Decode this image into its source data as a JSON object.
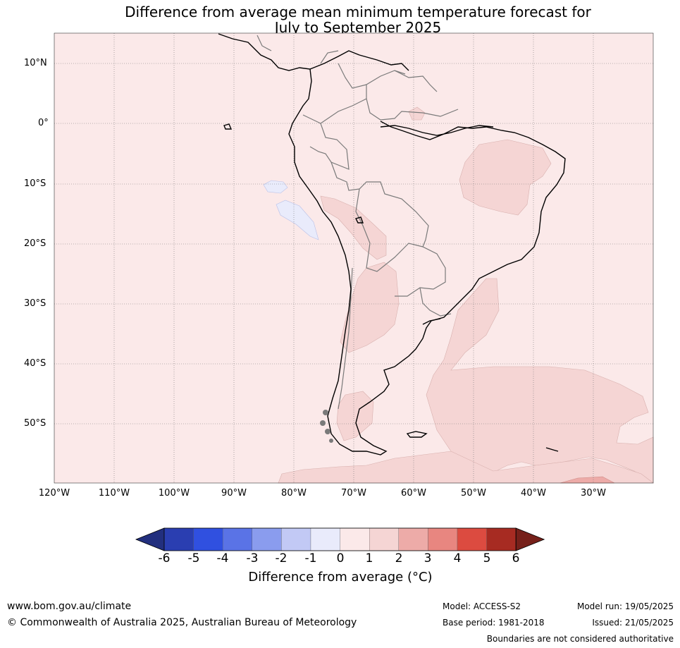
{
  "title_line1": "Difference from average mean minimum temperature forecast for",
  "title_line2": "July to September 2025",
  "lat_labels": [
    "10°N",
    "0°",
    "10°S",
    "20°S",
    "30°S",
    "40°S",
    "50°S"
  ],
  "lon_labels": [
    "120°W",
    "110°W",
    "100°W",
    "90°W",
    "80°W",
    "70°W",
    "60°W",
    "50°W",
    "40°W",
    "30°W"
  ],
  "colorbar": {
    "ticks": [
      "-6",
      "-5",
      "-4",
      "-3",
      "-2",
      "-1",
      "0",
      "1",
      "2",
      "3",
      "4",
      "5",
      "6"
    ],
    "colors": [
      "#222f7e",
      "#2a3eb1",
      "#3050e0",
      "#5a73e6",
      "#8a9cee",
      "#c2c9f5",
      "#e9ebfb",
      "#fbe9e9",
      "#f5d5d4",
      "#edaba8",
      "#e88680",
      "#dc4b40",
      "#a72b22",
      "#76201a"
    ],
    "label": "Difference from average (°C)"
  },
  "legend_colors": {
    "background_anomaly_0_to_1": "#fbe9e9",
    "anomaly_1_to_2": "#f5d5d4",
    "anomaly_2_to_3": "#edaba8",
    "anomaly_minus1_to_0": "#e9ebfb"
  },
  "footer": {
    "website": "www.bom.gov.au/climate",
    "copyright": "© Commonwealth of Australia 2025, Australian Bureau of Meteorology",
    "model": "Model: ACCESS-S2",
    "base_period": "Base period: 1981-2018",
    "model_run": "Model run: 19/05/2025",
    "issued": "Issued: 21/05/2025",
    "disclaimer": "Boundaries are not considered authoritative"
  }
}
